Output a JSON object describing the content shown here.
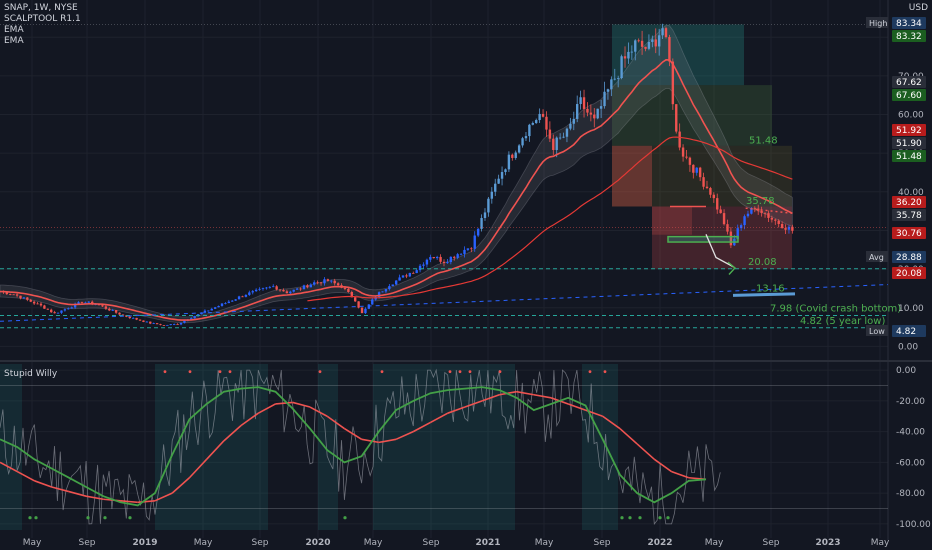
{
  "legend": {
    "symbol": "SNAP, 1W, NYSE",
    "indicators": [
      "SCALPTOOL R1.1",
      "EMA",
      "EMA"
    ],
    "oscillator": "Stupid Willy",
    "currency": "USD"
  },
  "colors": {
    "bg": "#131722",
    "grid": "#1e222d",
    "up": "#2962ff",
    "up_light": "#5b9bd5",
    "down": "#ef5350",
    "ema_fast": "#ef5350",
    "ema_slow": "#e53935",
    "target": "#26a69a",
    "axis_text": "#b2b5be",
    "green_text": "#4caf50",
    "blue_line": "#2962ff"
  },
  "chart_data": [
    {
      "type": "candlestick",
      "x_axis": [
        "May",
        "Sep",
        "2019",
        "May",
        "Sep",
        "2020",
        "May",
        "Sep",
        "2021",
        "May",
        "Sep",
        "2022",
        "May",
        "Sep",
        "2023",
        "May"
      ],
      "y_ticks": [
        0.0,
        10.0,
        20.0,
        30.0,
        40.0,
        50.0,
        60.0,
        70.0,
        80.0
      ],
      "ylim": [
        -3,
        86
      ],
      "price_labels": [
        {
          "label": "High",
          "value": "83.34"
        },
        {
          "value": "83.32"
        },
        {
          "value": "67.62"
        },
        {
          "value": "67.60"
        },
        {
          "value": "51.92"
        },
        {
          "value": "51.90"
        },
        {
          "value": "51.48"
        },
        {
          "value": "36.20"
        },
        {
          "value": "35.78"
        },
        {
          "value": "30.76"
        },
        {
          "label": "Avg",
          "value": "28.88"
        },
        {
          "value": "20.08"
        },
        {
          "label": "Low",
          "value": "4.82"
        }
      ],
      "annotations": [
        {
          "text": "51.48",
          "value": 51.48
        },
        {
          "text": "35.78",
          "value": 35.78
        },
        {
          "text": "20.08",
          "value": 20.08
        },
        {
          "text": "13.16",
          "value": 13.16
        },
        {
          "text": "7.98 (Covid crash bottom)",
          "value": 7.98
        },
        {
          "text": "4.82 (5 year low)",
          "value": 4.82
        }
      ],
      "price_path": [
        [
          0,
          14.2
        ],
        [
          4,
          13.5
        ],
        [
          8,
          12.0
        ],
        [
          12,
          10.5
        ],
        [
          16,
          8.5
        ],
        [
          20,
          10.0
        ],
        [
          24,
          11.5
        ],
        [
          28,
          11.0
        ],
        [
          32,
          9.5
        ],
        [
          36,
          8.0
        ],
        [
          40,
          7.0
        ],
        [
          44,
          6.0
        ],
        [
          48,
          5.5
        ],
        [
          52,
          5.8
        ],
        [
          56,
          7.5
        ],
        [
          60,
          9.0
        ],
        [
          64,
          10.5
        ],
        [
          68,
          12.0
        ],
        [
          72,
          13.5
        ],
        [
          76,
          14.5
        ],
        [
          80,
          15.5
        ],
        [
          84,
          14.0
        ],
        [
          88,
          15.0
        ],
        [
          92,
          16.5
        ],
        [
          96,
          17.0
        ],
        [
          100,
          15.5
        ],
        [
          104,
          12.0
        ],
        [
          106,
          8.5
        ],
        [
          110,
          13.0
        ],
        [
          114,
          16.0
        ],
        [
          118,
          18.0
        ],
        [
          122,
          20.0
        ],
        [
          126,
          23.5
        ],
        [
          130,
          22.0
        ],
        [
          134,
          24.0
        ],
        [
          138,
          26.0
        ],
        [
          142,
          35.0
        ],
        [
          146,
          44.0
        ],
        [
          150,
          50.0
        ],
        [
          154,
          56.0
        ],
        [
          158,
          60.0
        ],
        [
          162,
          52.0
        ],
        [
          166,
          55.0
        ],
        [
          170,
          63.0
        ],
        [
          174,
          58.0
        ],
        [
          178,
          66.0
        ],
        [
          182,
          73.0
        ],
        [
          186,
          78.0
        ],
        [
          190,
          77.0
        ],
        [
          194,
          82.5
        ],
        [
          196,
          73.0
        ],
        [
          198,
          55.0
        ],
        [
          200,
          50.0
        ],
        [
          204,
          45.0
        ],
        [
          208,
          40.0
        ],
        [
          212,
          32.0
        ],
        [
          214,
          26.0
        ],
        [
          218,
          34.0
        ],
        [
          222,
          36.0
        ],
        [
          226,
          33.0
        ],
        [
          230,
          31.0
        ],
        [
          232,
          30.0
        ]
      ]
    },
    {
      "type": "line",
      "title": "Stupid Willy",
      "y_ticks": [
        0.0,
        -20.0,
        -40.0,
        -60.0,
        -80.0,
        -100.0
      ],
      "ylim": [
        -104,
        4
      ],
      "series": [
        {
          "values": [
            -45,
            -50,
            -58,
            -64,
            -70,
            -76,
            -82,
            -86,
            -88,
            -80,
            -55,
            -32,
            -22,
            -14,
            -12,
            -11,
            -14,
            -25,
            -38,
            -52,
            -60,
            -56,
            -40,
            -26,
            -20,
            -15,
            -13,
            -12,
            -11,
            -13,
            -18,
            -26,
            -22,
            -18,
            -23,
            -45,
            -68,
            -80,
            -86,
            -80,
            -72,
            -71
          ]
        },
        {
          "values": [
            -60,
            -66,
            -72,
            -76,
            -79,
            -82,
            -84,
            -85,
            -86,
            -85,
            -80,
            -70,
            -58,
            -46,
            -36,
            -28,
            -22,
            -21,
            -24,
            -30,
            -38,
            -45,
            -47,
            -45,
            -40,
            -34,
            -28,
            -24,
            -20,
            -16,
            -14,
            -16,
            -18,
            -22,
            -26,
            -30,
            -38,
            -48,
            -58,
            -66,
            -70,
            -71
          ]
        }
      ]
    }
  ]
}
